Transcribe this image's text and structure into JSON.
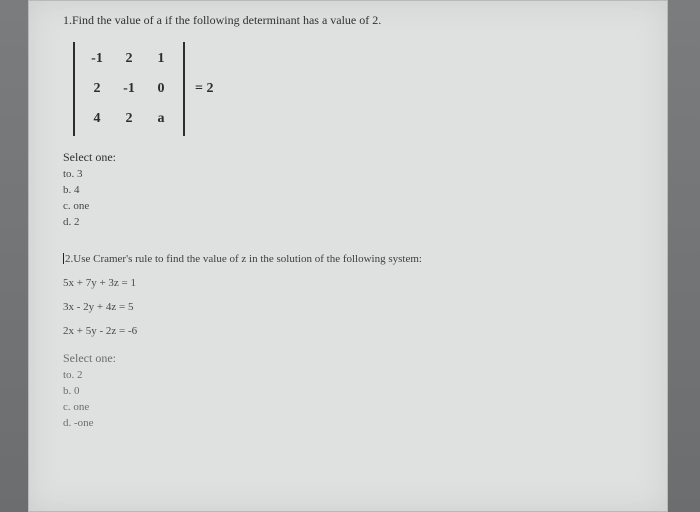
{
  "q1": {
    "prompt": "1.Find the value of a if the following determinant has a value of 2.",
    "matrix": [
      [
        "-1",
        "2",
        "1"
      ],
      [
        "2",
        "-1",
        "0"
      ],
      [
        "4",
        "2",
        "a"
      ]
    ],
    "rhs": "= 2",
    "select_label": "Select one:",
    "options": [
      "to. 3",
      "b. 4",
      "c. one",
      "d. 2"
    ]
  },
  "q2": {
    "prompt": "2.Use Cramer's rule to find the value of z in the solution of the following system:",
    "equations": [
      "5x + 7y + 3z = 1",
      "3x - 2y + 4z = 5",
      "2x + 5y - 2z = -6"
    ],
    "select_label": "Select one:",
    "options": [
      "to. 2",
      "b. 0",
      "c. one",
      "d. -one"
    ]
  }
}
